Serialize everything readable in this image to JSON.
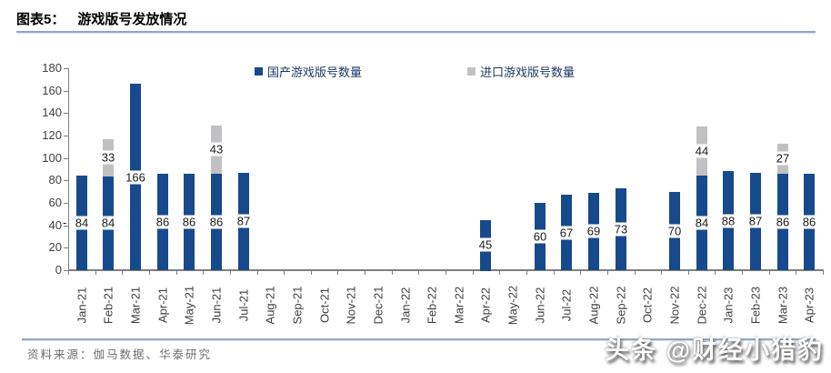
{
  "header": {
    "figure_label": "图表5：",
    "title": "游戏版号发放情况"
  },
  "chart_data": {
    "type": "bar",
    "stacked": true,
    "title": "游戏版号发放情况",
    "categories": [
      "Jan-21",
      "Feb-21",
      "Mar-21",
      "Apr-21",
      "May-21",
      "Jun-21",
      "Jul-21",
      "Aug-21",
      "Sep-21",
      "Oct-21",
      "Nov-21",
      "Dec-21",
      "Jan-22",
      "Feb-22",
      "Mar-22",
      "Apr-22",
      "May-22",
      "Jun-22",
      "Jul-22",
      "Aug-22",
      "Sep-22",
      "Oct-22",
      "Nov-22",
      "Dec-22",
      "Jan-23",
      "Feb-23",
      "Mar-23",
      "Apr-23"
    ],
    "series": [
      {
        "name": "国产游戏版号数量",
        "color": "#174a8c",
        "values": [
          84,
          84,
          166,
          86,
          86,
          86,
          87,
          0,
          0,
          0,
          0,
          0,
          0,
          0,
          0,
          45,
          0,
          60,
          67,
          69,
          73,
          0,
          70,
          84,
          88,
          87,
          86,
          86
        ]
      },
      {
        "name": "进口游戏版号数量",
        "color": "#c1c1c3",
        "values": [
          0,
          33,
          0,
          0,
          0,
          43,
          0,
          0,
          0,
          0,
          0,
          0,
          0,
          0,
          0,
          0,
          0,
          0,
          0,
          0,
          0,
          0,
          0,
          44,
          0,
          0,
          27,
          0
        ]
      }
    ],
    "ylim": [
      0,
      180
    ],
    "y_tick_step": 20,
    "y_ticks": [
      0,
      20,
      40,
      60,
      80,
      100,
      120,
      140,
      160,
      180
    ],
    "grid": false,
    "legend_position": "top-center",
    "data_labels": "non-zero segments labeled at segment center on white background",
    "stray_label_prefix_first_bar": "-"
  },
  "footer": {
    "source": "资料来源：伽马数据、华泰研究"
  },
  "watermark": {
    "text": "头条 @财经小猎豹"
  }
}
